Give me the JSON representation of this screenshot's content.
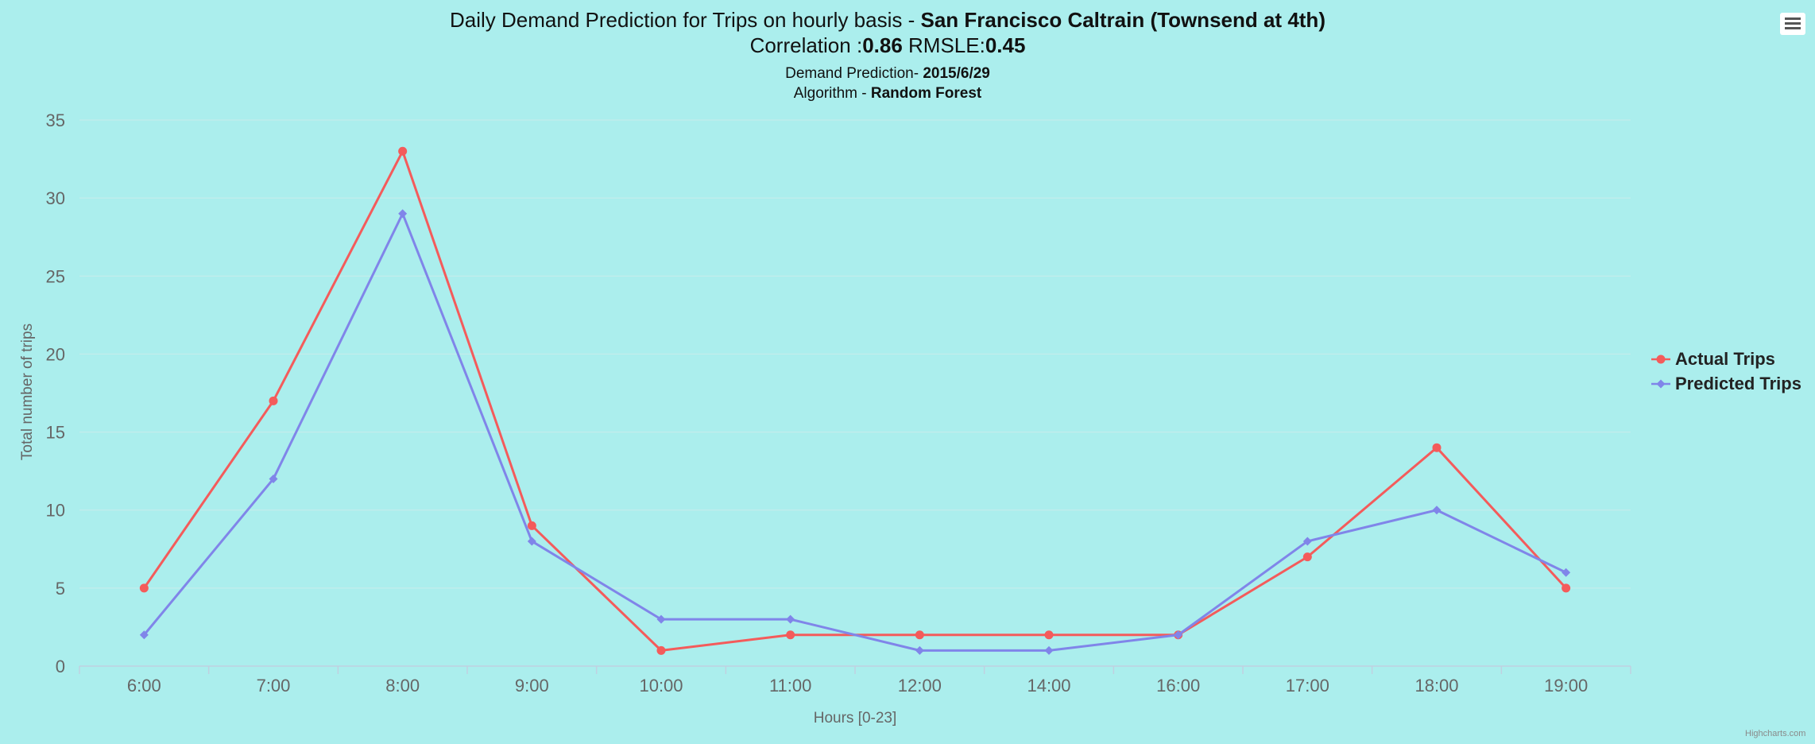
{
  "title": {
    "prefix": "Daily Demand Prediction for Trips on hourly basis - ",
    "station": "San Francisco Caltrain (Townsend at 4th)",
    "correlation_label": "Correlation :",
    "correlation_value": "0.86",
    "rmsle_label": " RMSLE:",
    "rmsle_value": "0.45"
  },
  "subtitle": {
    "date_label": "Demand Prediction- ",
    "date_value": "2015/6/29",
    "algorithm_label": "Algorithm - ",
    "algorithm_value": "Random Forest"
  },
  "menu": {
    "icon": "hamburger-menu-icon"
  },
  "credits": "Highcharts.com",
  "colors": {
    "background": "#abeeed",
    "actual": "#f45b5b",
    "predicted": "#8085e9",
    "grid": "#c9ecec",
    "axis": "#c0d0e0"
  },
  "chart_data": {
    "type": "line",
    "categories": [
      "6:00",
      "7:00",
      "8:00",
      "9:00",
      "10:00",
      "11:00",
      "12:00",
      "14:00",
      "16:00",
      "17:00",
      "18:00",
      "19:00"
    ],
    "series": [
      {
        "name": "Actual Trips",
        "marker": "circle",
        "values": [
          5,
          17,
          33,
          9,
          1,
          2,
          2,
          2,
          2,
          7,
          14,
          5
        ]
      },
      {
        "name": "Predicted Trips",
        "marker": "diamond",
        "values": [
          2,
          12,
          29,
          8,
          3,
          3,
          1,
          1,
          2,
          8,
          10,
          6
        ]
      }
    ],
    "xlabel": "Hours [0-23]",
    "ylabel": "Total number of trips",
    "ylim": [
      0,
      35
    ],
    "yticks": [
      0,
      5,
      10,
      15,
      20,
      25,
      30,
      35
    ],
    "grid": true,
    "legend": "right"
  }
}
